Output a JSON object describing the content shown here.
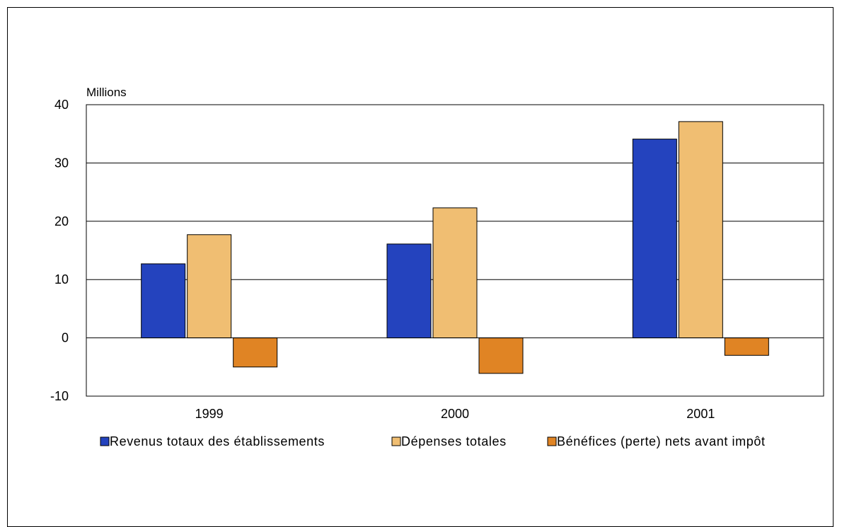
{
  "chart_data": {
    "type": "bar",
    "ylabel": "Millions",
    "ylim": [
      -10,
      40
    ],
    "yticks": [
      -10,
      0,
      10,
      20,
      30,
      40
    ],
    "categories": [
      "1999",
      "2000",
      "2001"
    ],
    "grid": true,
    "legend_position": "bottom",
    "series": [
      {
        "name": "Revenus totaux des établissements",
        "color": "#2443BE",
        "values": [
          12.7,
          16.1,
          34.1
        ]
      },
      {
        "name": "Dépenses totales",
        "color": "#F0BE72",
        "values": [
          17.7,
          22.3,
          37.1
        ]
      },
      {
        "name": "Bénéfices (perte) nets avant impôt",
        "color": "#E08424",
        "values": [
          -5.0,
          -6.1,
          -3.0
        ]
      }
    ]
  }
}
